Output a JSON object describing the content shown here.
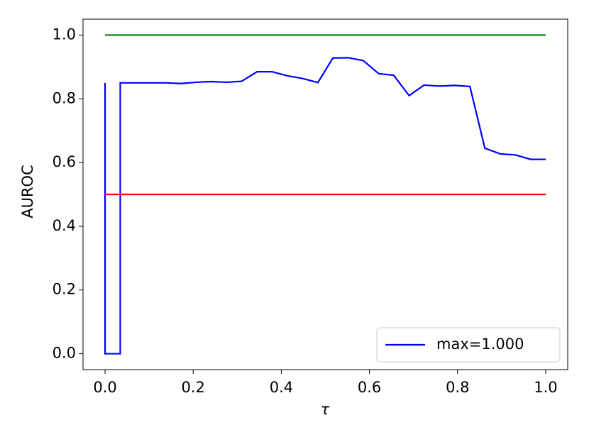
{
  "chart_data": {
    "type": "line",
    "x_label": "τ",
    "y_label": "AUROC",
    "xlim": [
      -0.05,
      1.05
    ],
    "ylim": [
      -0.05,
      1.05
    ],
    "xticks": [
      {
        "value": 0,
        "label": "0.0"
      },
      {
        "value": 0.2,
        "label": "0.2"
      },
      {
        "value": 0.4,
        "label": "0.4"
      },
      {
        "value": 0.6,
        "label": "0.6"
      },
      {
        "value": 0.8,
        "label": "0.8"
      },
      {
        "value": 1,
        "label": "1.0"
      }
    ],
    "yticks": [
      {
        "value": 0,
        "label": "0.0"
      },
      {
        "value": 0.2,
        "label": "0.2"
      },
      {
        "value": 0.4,
        "label": "0.4"
      },
      {
        "value": 0.6,
        "label": "0.6"
      },
      {
        "value": 0.8,
        "label": "0.8"
      },
      {
        "value": 1,
        "label": "1.0"
      }
    ],
    "legend": "lower right",
    "series": [
      {
        "name": "max=1.000",
        "color": "#0000ff",
        "x": [
          0,
          0,
          0.0345,
          0.0345,
          0.069,
          0.103,
          0.138,
          0.172,
          0.207,
          0.241,
          0.276,
          0.31,
          0.345,
          0.379,
          0.414,
          0.448,
          0.483,
          0.517,
          0.552,
          0.586,
          0.621,
          0.655,
          0.69,
          0.724,
          0.759,
          0.793,
          0.828,
          0.862,
          0.897,
          0.931,
          0.966,
          1
        ],
        "values": [
          0.85,
          0,
          0,
          0.85,
          0.85,
          0.85,
          0.85,
          0.848,
          0.852,
          0.854,
          0.852,
          0.855,
          0.885,
          0.885,
          0.872,
          0.864,
          0.851,
          0.928,
          0.929,
          0.92,
          0.879,
          0.874,
          0.81,
          0.843,
          0.84,
          0.842,
          0.839,
          0.645,
          0.627,
          0.624,
          0.61,
          0.61
        ]
      },
      {
        "color": "#008000",
        "x": [
          0,
          1
        ],
        "values": [
          1,
          1
        ]
      },
      {
        "color": "#ff0000",
        "x": [
          0,
          1
        ],
        "values": [
          0.5,
          0.5
        ]
      }
    ]
  }
}
